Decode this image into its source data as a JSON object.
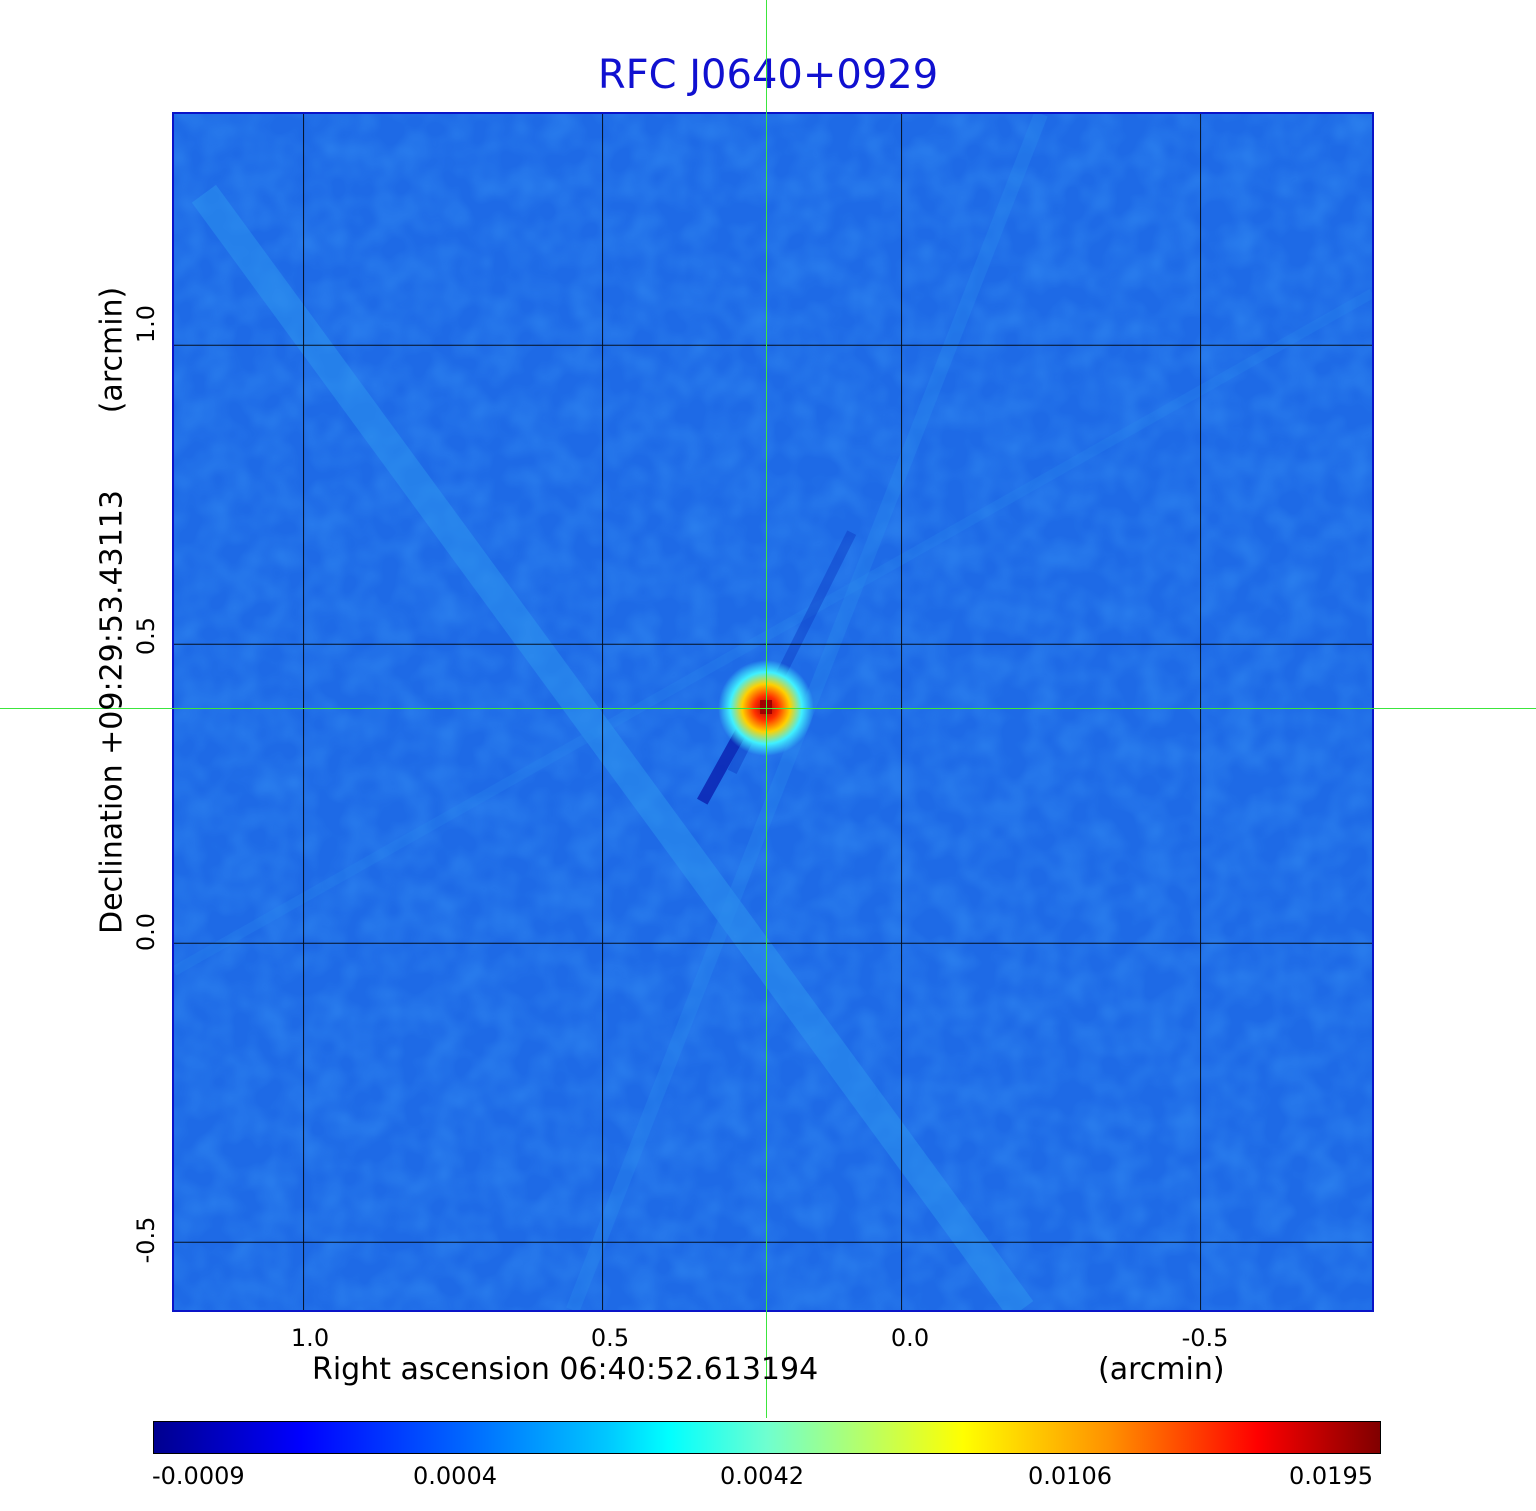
{
  "title": "RFC J0640+0929",
  "x_axis": {
    "label": "Right ascension  06:40:52.613194",
    "unit": "(arcmin)",
    "ticks": [
      "1.0",
      "0.5",
      "0.0",
      "-0.5"
    ]
  },
  "y_axis": {
    "label": "Declination  +09:29:53.43113",
    "unit": "(arcmin)",
    "ticks": [
      "1.0",
      "0.5",
      "0.0",
      "-0.5"
    ]
  },
  "colorbar": {
    "ticks": [
      "-0.0009",
      "0.0004",
      "0.0042",
      "0.0106",
      "0.0195"
    ],
    "colormap": "jet"
  },
  "colors": {
    "title": "#1010d0",
    "frame": "#0a14c8",
    "crosshair": "#3ce63c",
    "background_field": "#1e6ae6"
  }
}
